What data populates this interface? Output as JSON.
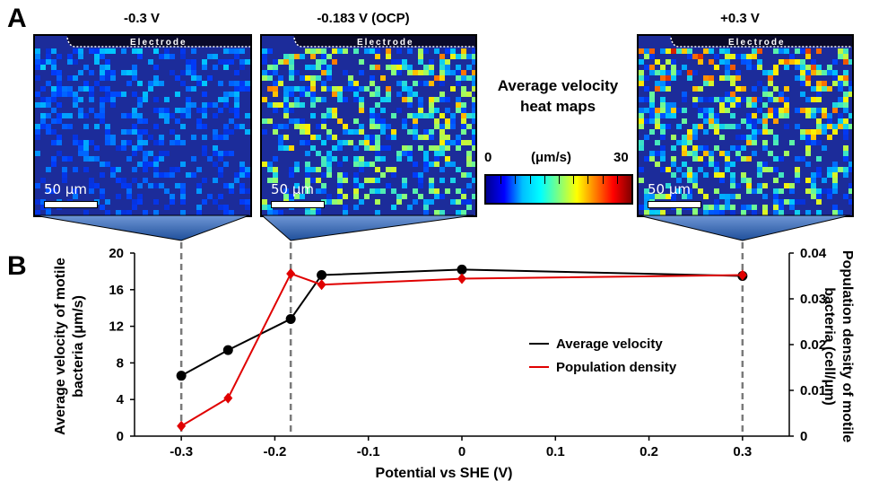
{
  "panel_labels": {
    "a": "A",
    "b": "B"
  },
  "heatmaps": [
    {
      "title": "-0.3 V",
      "electrode_label": "Electrode",
      "scale_label": "50 μm",
      "intensity": 0.25
    },
    {
      "title": "-0.183 V (OCP)",
      "electrode_label": "Electrode",
      "scale_label": "50 μm",
      "intensity": 0.6
    },
    {
      "title": "+0.3 V",
      "electrode_label": "Electrode",
      "scale_label": "50 μm",
      "intensity": 0.65
    }
  ],
  "colorbar": {
    "title_line1": "Average velocity",
    "title_line2": "heat maps",
    "min_label": "0",
    "unit_label": "(μm/s)",
    "max_label": "30",
    "colors": [
      "#00008f",
      "#0000ff",
      "#00bfff",
      "#00ffff",
      "#7fff7f",
      "#ffff00",
      "#ff8000",
      "#ff0000",
      "#800000"
    ]
  },
  "chart_data": {
    "type": "line",
    "xlabel": "Potential vs SHE (V)",
    "ylabel_left_line1": "Average velocity of motile",
    "ylabel_left_line2": "bacteria (μm/s)",
    "ylabel_right_line1": "Population density of motile",
    "ylabel_right_line2": "bacteria (cell/μm)",
    "xlim": [
      -0.35,
      0.35
    ],
    "ylim_left": [
      0,
      20
    ],
    "ylim_right": [
      0,
      0.04
    ],
    "x_ticks": [
      "-0.3",
      "-0.2",
      "-0.1",
      "0",
      "0.1",
      "0.2",
      "0.3"
    ],
    "x_tick_values": [
      -0.3,
      -0.2,
      -0.1,
      0,
      0.1,
      0.2,
      0.3
    ],
    "y_left_ticks": [
      "0",
      "4",
      "8",
      "12",
      "16",
      "20"
    ],
    "y_left_tick_values": [
      0,
      4,
      8,
      12,
      16,
      20
    ],
    "y_right_ticks": [
      "0",
      "0.01",
      "0.02",
      "0.03",
      "0.04"
    ],
    "y_right_tick_values": [
      0,
      0.01,
      0.02,
      0.03,
      0.04
    ],
    "dashed_x": [
      -0.3,
      -0.183,
      0.3
    ],
    "series": [
      {
        "name": "Average velocity",
        "color": "#000000",
        "marker": "circle",
        "axis": "left",
        "x": [
          -0.3,
          -0.25,
          -0.183,
          -0.15,
          0,
          0.3
        ],
        "y": [
          6.6,
          9.4,
          12.8,
          17.6,
          18.2,
          17.5
        ]
      },
      {
        "name": "Population density",
        "color": "#e00000",
        "marker": "diamond",
        "axis": "right",
        "x": [
          -0.3,
          -0.25,
          -0.183,
          -0.15,
          0,
          0.3
        ],
        "y": [
          0.0022,
          0.0083,
          0.0355,
          0.0331,
          0.0344,
          0.0352
        ]
      }
    ],
    "legend_position": "right-middle"
  }
}
